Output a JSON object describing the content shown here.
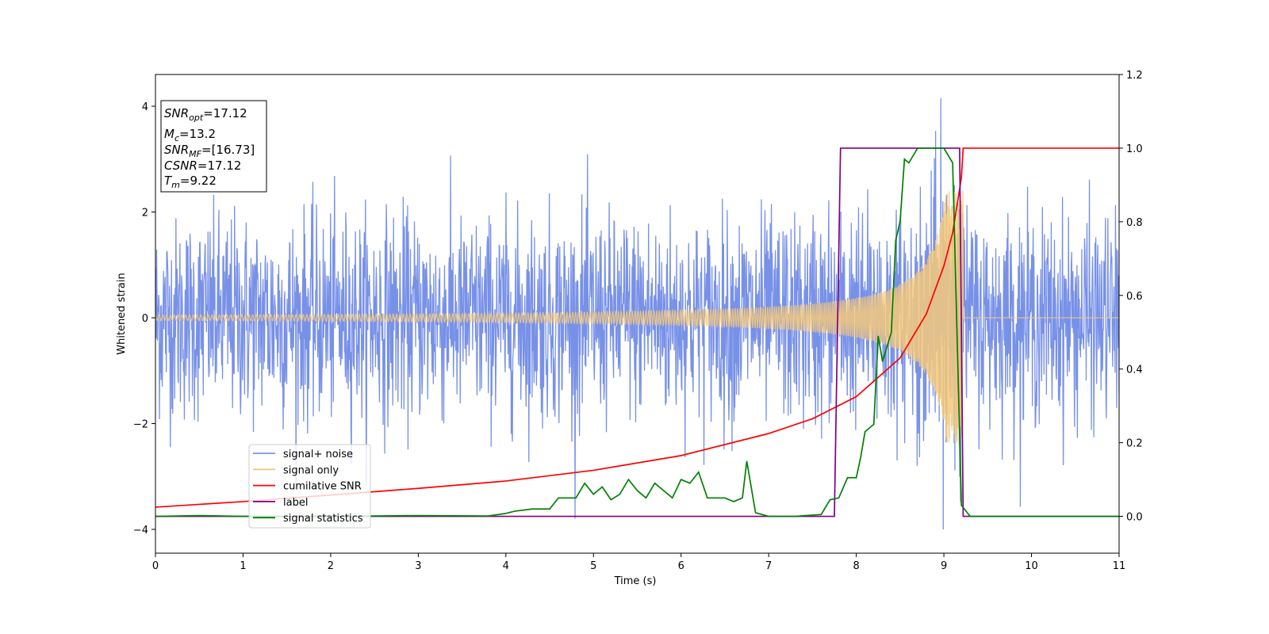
{
  "chart_data": {
    "type": "line",
    "xlabel": "Time (s)",
    "ylabel": "Whitened strain",
    "xlim": [
      0,
      11
    ],
    "ylim_left": [
      -4.45,
      4.6
    ],
    "ylim_right": [
      -0.1,
      1.2
    ],
    "x_ticks": [
      "0",
      "1",
      "2",
      "3",
      "4",
      "5",
      "6",
      "7",
      "8",
      "9",
      "10",
      "11"
    ],
    "y_ticks_left": [
      "−4",
      "−2",
      "0",
      "2",
      "4"
    ],
    "y_ticks_right": [
      "0.0",
      "0.2",
      "0.4",
      "0.6",
      "0.8",
      "1.0",
      "1.2"
    ],
    "grid": false,
    "legend_position": "lower-left",
    "info_box": {
      "snr_opt": {
        "main": "SNR",
        "sub": "opt",
        "value": "=17.12"
      },
      "mc": {
        "main": "M",
        "sub": "c",
        "value": "=13.2"
      },
      "snr_mf": {
        "main": "SNR",
        "sub": "MF",
        "value": "=[16.73]"
      },
      "csnr": {
        "main": "CSNR",
        "sub": "",
        "value": "=17.12"
      },
      "tm": {
        "main": "T",
        "sub": "m",
        "value": "=9.22"
      }
    },
    "series": [
      {
        "name": "signal+ noise",
        "color": "#7891e8",
        "axis": "left",
        "description_values": {
          "amplitude_range": [
            -4.0,
            4.15
          ],
          "duration": [
            0,
            11
          ]
        }
      },
      {
        "name": "signal only",
        "color": "#f5c87a",
        "axis": "left",
        "chirp": {
          "t_start": 0,
          "t_merge": 9.22,
          "amp_start": 0.05,
          "amp_peak": 2.4,
          "post_merge": 0
        }
      },
      {
        "name": "cumilative SNR",
        "color": "#ff0000",
        "axis": "right",
        "points": [
          [
            0,
            0.025
          ],
          [
            1,
            0.04
          ],
          [
            2,
            0.058
          ],
          [
            3,
            0.076
          ],
          [
            4,
            0.096
          ],
          [
            5,
            0.125
          ],
          [
            6,
            0.165
          ],
          [
            7,
            0.225
          ],
          [
            7.5,
            0.265
          ],
          [
            8,
            0.325
          ],
          [
            8.5,
            0.43
          ],
          [
            8.8,
            0.55
          ],
          [
            9.0,
            0.68
          ],
          [
            9.1,
            0.77
          ],
          [
            9.2,
            0.92
          ],
          [
            9.22,
            1.0
          ],
          [
            11,
            1.0
          ]
        ]
      },
      {
        "name": "label",
        "color": "#800080",
        "axis": "right",
        "points": [
          [
            0,
            0.0
          ],
          [
            7.75,
            0.0
          ],
          [
            7.82,
            1.0
          ],
          [
            9.18,
            1.0
          ],
          [
            9.22,
            0.0
          ],
          [
            11,
            0.0
          ]
        ]
      },
      {
        "name": "signal statistics",
        "color": "#008000",
        "axis": "right",
        "points": [
          [
            0,
            0.0
          ],
          [
            0.5,
            0.002
          ],
          [
            1,
            0.0
          ],
          [
            2,
            0.0
          ],
          [
            3,
            0.002
          ],
          [
            3.8,
            0.001
          ],
          [
            4.0,
            0.008
          ],
          [
            4.1,
            0.014
          ],
          [
            4.3,
            0.02
          ],
          [
            4.5,
            0.02
          ],
          [
            4.6,
            0.05
          ],
          [
            4.8,
            0.05
          ],
          [
            4.9,
            0.09
          ],
          [
            5.0,
            0.06
          ],
          [
            5.1,
            0.08
          ],
          [
            5.2,
            0.045
          ],
          [
            5.3,
            0.06
          ],
          [
            5.4,
            0.1
          ],
          [
            5.5,
            0.07
          ],
          [
            5.6,
            0.05
          ],
          [
            5.7,
            0.09
          ],
          [
            5.8,
            0.07
          ],
          [
            5.9,
            0.05
          ],
          [
            6.0,
            0.1
          ],
          [
            6.1,
            0.09
          ],
          [
            6.2,
            0.12
          ],
          [
            6.3,
            0.05
          ],
          [
            6.4,
            0.05
          ],
          [
            6.5,
            0.05
          ],
          [
            6.6,
            0.04
          ],
          [
            6.7,
            0.05
          ],
          [
            6.75,
            0.15
          ],
          [
            6.85,
            0.01
          ],
          [
            7.0,
            0.0
          ],
          [
            7.3,
            0.0
          ],
          [
            7.6,
            0.005
          ],
          [
            7.7,
            0.045
          ],
          [
            7.8,
            0.05
          ],
          [
            7.9,
            0.105
          ],
          [
            8.0,
            0.105
          ],
          [
            8.05,
            0.16
          ],
          [
            8.1,
            0.23
          ],
          [
            8.2,
            0.25
          ],
          [
            8.25,
            0.49
          ],
          [
            8.3,
            0.42
          ],
          [
            8.4,
            0.5
          ],
          [
            8.45,
            0.75
          ],
          [
            8.5,
            0.8
          ],
          [
            8.55,
            0.97
          ],
          [
            8.6,
            0.96
          ],
          [
            8.7,
            1.0
          ],
          [
            8.8,
            1.0
          ],
          [
            9.0,
            1.0
          ],
          [
            9.1,
            0.96
          ],
          [
            9.2,
            0.03
          ],
          [
            9.3,
            0.0
          ],
          [
            11,
            0.0
          ]
        ]
      }
    ]
  }
}
